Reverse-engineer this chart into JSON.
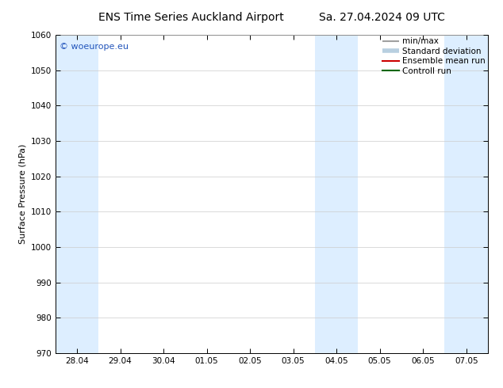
{
  "title_left": "ENS Time Series Auckland Airport",
  "title_right": "Sa. 27.04.2024 09 UTC",
  "ylabel": "Surface Pressure (hPa)",
  "ylim": [
    970,
    1060
  ],
  "yticks": [
    970,
    980,
    990,
    1000,
    1010,
    1020,
    1030,
    1040,
    1050,
    1060
  ],
  "xtick_labels": [
    "28.04",
    "29.04",
    "30.04",
    "01.05",
    "02.05",
    "03.05",
    "04.05",
    "05.05",
    "06.05",
    "07.05"
  ],
  "xtick_positions": [
    1,
    2,
    3,
    4,
    5,
    6,
    7,
    8,
    9,
    10
  ],
  "xlim": [
    0.5,
    10.5
  ],
  "shaded_bands": [
    {
      "xstart": 0.5,
      "xend": 1.5,
      "color": "#ddeeff"
    },
    {
      "xstart": 6.5,
      "xend": 7.5,
      "color": "#ddeeff"
    },
    {
      "xstart": 9.5,
      "xend": 10.5,
      "color": "#ddeeff"
    }
  ],
  "legend_labels": [
    "min/max",
    "Standard deviation",
    "Ensemble mean run",
    "Controll run"
  ],
  "legend_colors_line": [
    "#a0a0a0",
    "#b8cfe0",
    "#cc0000",
    "#006600"
  ],
  "watermark_text": "© woeurope.eu",
  "watermark_color": "#2255bb",
  "background_color": "#ffffff",
  "plot_bg_color": "#ffffff",
  "title_fontsize": 10,
  "axis_label_fontsize": 8,
  "tick_fontsize": 7.5,
  "legend_fontsize": 7.5
}
